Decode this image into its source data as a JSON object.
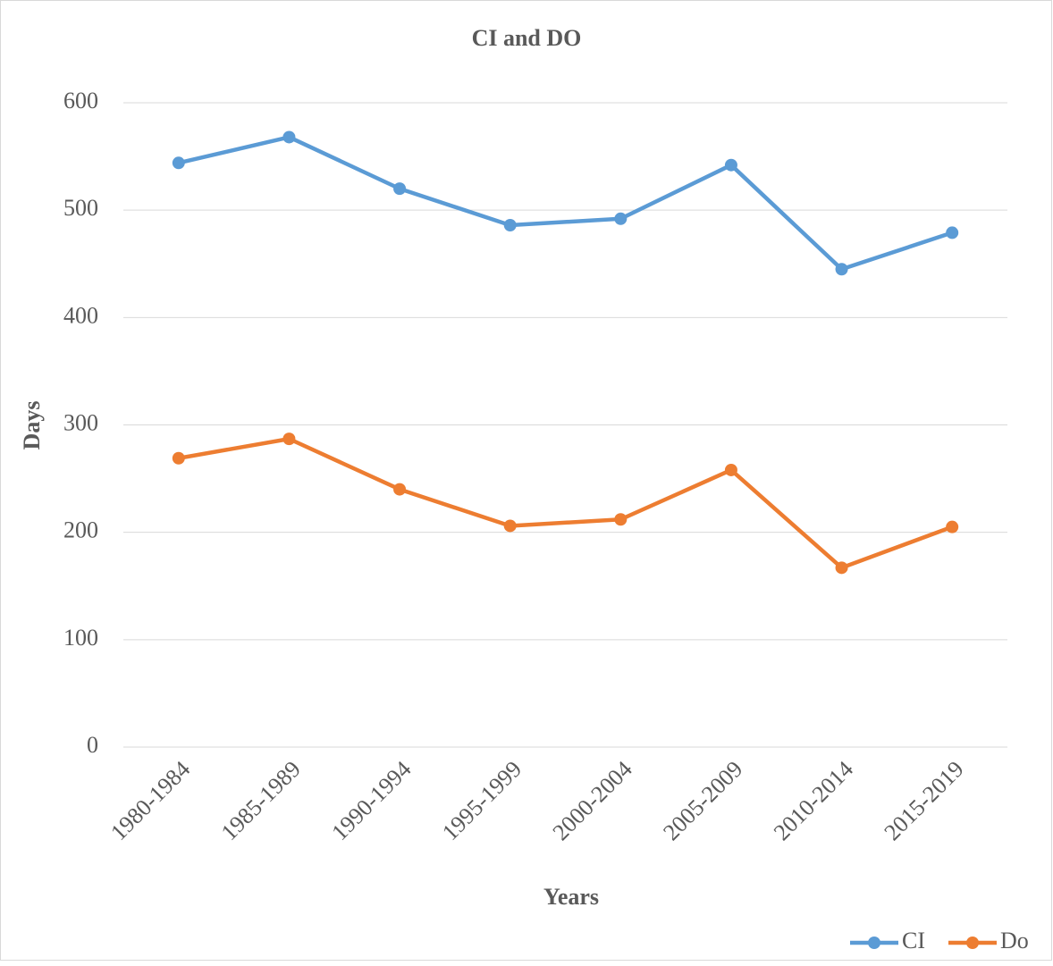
{
  "chart_data": {
    "type": "line",
    "title": "CI and DO",
    "x_label": "Years",
    "y_label": "Days",
    "categories": [
      "1980-1984",
      "1985-1989",
      "1990-1994",
      "1995-1999",
      "2000-2004",
      "2005-2009",
      "2010-2014",
      "2015-2019"
    ],
    "series": [
      {
        "name": "CI",
        "color": "#5b9bd5",
        "values": [
          544,
          568,
          520,
          486,
          492,
          542,
          445,
          479
        ]
      },
      {
        "name": "Do",
        "color": "#ed7d31",
        "values": [
          269,
          287,
          240,
          206,
          212,
          258,
          167,
          205
        ]
      }
    ],
    "ylim": [
      0,
      600
    ],
    "yticks": [
      0,
      100,
      200,
      300,
      400,
      500,
      600
    ],
    "grid": true,
    "legend": "bottom-right"
  }
}
